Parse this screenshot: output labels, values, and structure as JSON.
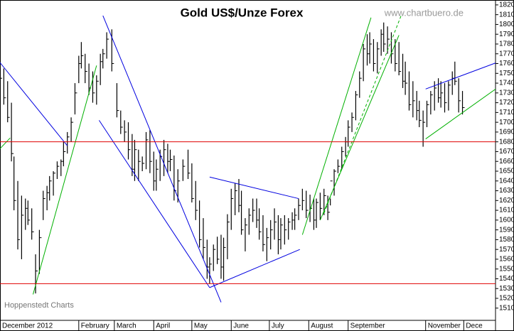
{
  "chart_data": {
    "type": "ohlc",
    "title": "Gold US$/Unze Forex",
    "watermark": "www.chartbuero.de",
    "source": "Hoppenstedt Charts",
    "color": "#000000",
    "x": [
      0,
      3,
      6,
      9,
      11,
      14,
      17,
      20,
      22,
      25,
      28,
      31,
      34,
      37,
      39,
      42,
      45,
      48,
      50,
      53,
      56,
      59,
      62,
      64,
      67,
      70,
      73,
      76,
      79,
      81,
      84,
      88,
      92,
      95,
      98,
      101,
      104,
      106,
      109,
      112,
      115,
      118,
      121,
      123,
      126,
      129,
      132,
      134,
      137,
      140,
      144,
      148,
      151,
      154,
      157,
      160,
      163,
      165,
      168,
      171,
      174,
      176,
      179,
      182,
      185,
      188,
      190,
      193,
      196,
      199,
      202,
      204,
      207,
      210,
      213,
      216,
      219,
      221,
      224,
      227,
      230,
      232,
      235,
      238,
      241,
      244,
      247,
      249,
      252,
      255,
      258,
      260,
      263,
      266,
      269,
      272,
      274,
      277,
      280,
      283,
      286,
      289,
      291,
      294,
      297,
      300,
      302,
      305,
      308,
      311,
      314,
      317,
      319,
      322,
      325,
      328,
      330,
      333,
      336,
      339,
      342,
      345,
      347,
      350,
      353,
      356,
      358,
      361,
      364
    ],
    "high": [
      1762,
      1755,
      1742,
      1720,
      1665,
      1640,
      1625,
      1622,
      1620,
      1612,
      1565,
      1590,
      1630,
      1635,
      1645,
      1650,
      1660,
      1662,
      1680,
      1690,
      1705,
      1740,
      1768,
      1782,
      1770,
      1760,
      1752,
      1748,
      1770,
      1775,
      1792,
      1795,
      1740,
      1712,
      1702,
      1700,
      1688,
      1682,
      1672,
      1665,
      1690,
      1692,
      1670,
      1662,
      1672,
      1682,
      1678,
      1672,
      1666,
      1652,
      1662,
      1672,
      1658,
      1640,
      1620,
      1602,
      1580,
      1562,
      1575,
      1583,
      1585,
      1582,
      1606,
      1632,
      1638,
      1642,
      1630,
      1602,
      1612,
      1622,
      1622,
      1612,
      1605,
      1592,
      1600,
      1612,
      1605,
      1602,
      1605,
      1602,
      1608,
      1612,
      1622,
      1632,
      1630,
      1626,
      1622,
      1622,
      1628,
      1632,
      1625,
      1622,
      1652,
      1662,
      1675,
      1685,
      1702,
      1710,
      1732,
      1752,
      1780,
      1790,
      1792,
      1785,
      1782,
      1795,
      1802,
      1798,
      1792,
      1785,
      1782,
      1770,
      1762,
      1752,
      1742,
      1732,
      1722,
      1712,
      1722,
      1732,
      1742,
      1745,
      1742,
      1740,
      1742,
      1752,
      1762,
      1745,
      1732
    ],
    "low": [
      1735,
      1718,
      1700,
      1660,
      1610,
      1570,
      1560,
      1590,
      1595,
      1580,
      1525,
      1545,
      1600,
      1610,
      1620,
      1625,
      1642,
      1645,
      1655,
      1668,
      1680,
      1708,
      1740,
      1755,
      1740,
      1728,
      1720,
      1718,
      1738,
      1755,
      1765,
      1752,
      1705,
      1688,
      1680,
      1662,
      1645,
      1640,
      1640,
      1650,
      1652,
      1648,
      1630,
      1630,
      1640,
      1645,
      1648,
      1650,
      1620,
      1618,
      1640,
      1642,
      1618,
      1600,
      1572,
      1560,
      1540,
      1535,
      1548,
      1555,
      1540,
      1538,
      1560,
      1590,
      1605,
      1608,
      1585,
      1568,
      1585,
      1598,
      1592,
      1580,
      1568,
      1558,
      1570,
      1580,
      1565,
      1570,
      1575,
      1580,
      1590,
      1590,
      1600,
      1610,
      1602,
      1598,
      1590,
      1592,
      1600,
      1605,
      1600,
      1615,
      1625,
      1648,
      1652,
      1665,
      1675,
      1690,
      1702,
      1725,
      1742,
      1758,
      1760,
      1752,
      1750,
      1768,
      1772,
      1770,
      1760,
      1752,
      1748,
      1735,
      1728,
      1712,
      1705,
      1702,
      1695,
      1675,
      1695,
      1708,
      1712,
      1720,
      1715,
      1710,
      1712,
      1728,
      1738,
      1710,
      1708
    ],
    "close": [
      1745,
      1725,
      1705,
      1668,
      1620,
      1580,
      1605,
      1612,
      1600,
      1588,
      1548,
      1582,
      1622,
      1628,
      1640,
      1648,
      1655,
      1660,
      1670,
      1685,
      1700,
      1730,
      1760,
      1768,
      1752,
      1735,
      1730,
      1742,
      1762,
      1770,
      1785,
      1760,
      1712,
      1695,
      1690,
      1672,
      1652,
      1672,
      1660,
      1658,
      1682,
      1660,
      1640,
      1652,
      1665,
      1672,
      1660,
      1662,
      1630,
      1640,
      1655,
      1648,
      1622,
      1610,
      1580,
      1572,
      1552,
      1555,
      1570,
      1560,
      1552,
      1572,
      1598,
      1622,
      1630,
      1615,
      1590,
      1595,
      1605,
      1610,
      1600,
      1588,
      1575,
      1582,
      1590,
      1598,
      1580,
      1595,
      1590,
      1598,
      1600,
      1605,
      1615,
      1620,
      1610,
      1612,
      1600,
      1618,
      1612,
      1625,
      1608,
      1640,
      1650,
      1655,
      1670,
      1680,
      1695,
      1705,
      1728,
      1745,
      1775,
      1770,
      1780,
      1760,
      1775,
      1790,
      1780,
      1785,
      1770,
      1760,
      1752,
      1742,
      1740,
      1718,
      1722,
      1712,
      1702,
      1700,
      1718,
      1728,
      1735,
      1725,
      1730,
      1720,
      1738,
      1745,
      1742,
      1722,
      1715
    ],
    "ylim": [
      1497.5,
      1825
    ],
    "yticks": [
      1510,
      1520,
      1530,
      1540,
      1550,
      1560,
      1570,
      1580,
      1590,
      1600,
      1610,
      1620,
      1630,
      1640,
      1650,
      1660,
      1670,
      1680,
      1690,
      1700,
      1710,
      1720,
      1730,
      1740,
      1750,
      1760,
      1770,
      1780,
      1790,
      1800,
      1810,
      1820
    ],
    "xlim": [
      0,
      390
    ],
    "xticks": [
      {
        "value": 0,
        "label": "December 2012"
      },
      {
        "value": 62,
        "label": "February"
      },
      {
        "value": 90,
        "label": "March"
      },
      {
        "value": 121,
        "label": "April"
      },
      {
        "value": 151,
        "label": "May"
      },
      {
        "value": 182,
        "label": "June"
      },
      {
        "value": 212,
        "label": "July"
      },
      {
        "value": 243,
        "label": "August"
      },
      {
        "value": 274,
        "label": "September"
      },
      {
        "value": 335,
        "label": "November"
      },
      {
        "value": 365,
        "label": "Dece"
      }
    ],
    "hlines": [
      1680,
      1535
    ],
    "hline_color": "#e00000",
    "trendlines": [
      {
        "x": [
          0,
          53
        ],
        "y": [
          1761,
          1676
        ],
        "color": "#0000e0"
      },
      {
        "x": [
          81,
          174
        ],
        "y": [
          1809,
          1516
        ],
        "color": "#0000e0"
      },
      {
        "x": [
          78,
          165
        ],
        "y": [
          1702,
          1531
        ],
        "color": "#0000e0"
      },
      {
        "x": [
          165,
          235
        ],
        "y": [
          1644,
          1622
        ],
        "color": "#0000e0"
      },
      {
        "x": [
          165,
          236
        ],
        "y": [
          1531,
          1570
        ],
        "color": "#0000e0"
      },
      {
        "x": [
          26,
          76
        ],
        "y": [
          1524,
          1758
        ],
        "color": "#00b000"
      },
      {
        "x": [
          0,
          8
        ],
        "y": [
          1673,
          1684
        ],
        "color": "#00b000"
      },
      {
        "x": [
          238,
          292
        ],
        "y": [
          1585,
          1807
        ],
        "color": "#00b000"
      },
      {
        "x": [
          252,
          314
        ],
        "y": [
          1600,
          1789
        ],
        "color": "#00b000"
      },
      {
        "x": [
          255,
          316
        ],
        "y": [
          1607,
          1810
        ],
        "color": "#00b000",
        "dash": true
      },
      {
        "x": [
          335,
          395
        ],
        "y": [
          1734,
          1763
        ],
        "color": "#0000e0"
      },
      {
        "x": [
          335,
          402
        ],
        "y": [
          1683,
          1745
        ],
        "color": "#00b000"
      }
    ]
  }
}
